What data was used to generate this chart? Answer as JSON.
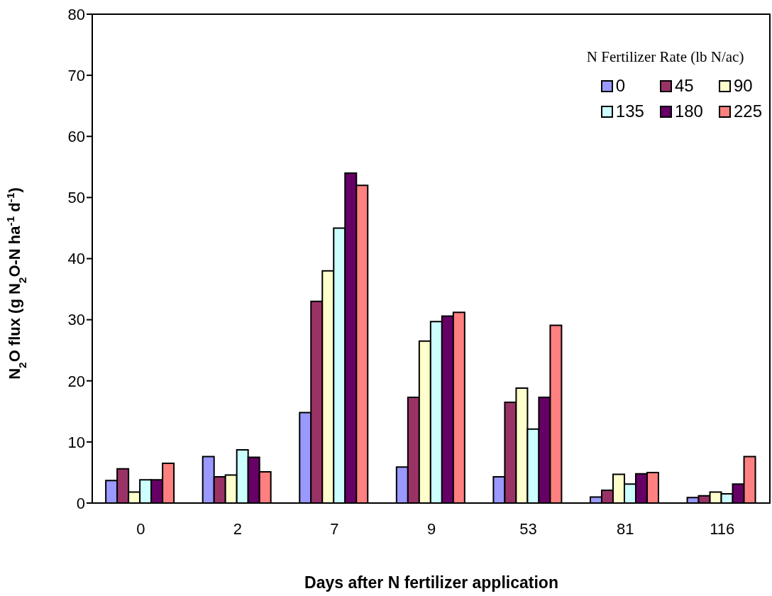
{
  "chart_data": {
    "type": "bar",
    "xlabel": "Days after N fertilizer application",
    "ylabel": "N$_{2}$O flux (g N$_{2}$O-N ha$^{-1}$ d$^{-1}$)",
    "legend_title": "N Fertilizer Rate (lb N/ac)",
    "categories": [
      "0",
      "2",
      "7",
      "9",
      "53",
      "81",
      "116"
    ],
    "series": [
      {
        "name": "0",
        "color": "#9999ff",
        "values": [
          3.7,
          7.6,
          14.8,
          5.9,
          4.3,
          1.0,
          0.9
        ]
      },
      {
        "name": "45",
        "color": "#993366",
        "values": [
          5.6,
          4.3,
          33,
          17.3,
          16.5,
          2.1,
          1.2
        ]
      },
      {
        "name": "90",
        "color": "#ffffcc",
        "values": [
          1.8,
          4.6,
          38,
          26.5,
          18.8,
          4.7,
          1.8
        ]
      },
      {
        "name": "135",
        "color": "#ccffff",
        "values": [
          3.8,
          8.7,
          45,
          29.7,
          12.1,
          3.1,
          1.5
        ]
      },
      {
        "name": "180",
        "color": "#660066",
        "values": [
          3.8,
          7.5,
          54,
          30.6,
          17.3,
          4.8,
          3.1
        ]
      },
      {
        "name": "225",
        "color": "#ff8080",
        "values": [
          6.5,
          5.1,
          52,
          31.2,
          29.1,
          5.0,
          7.6
        ]
      }
    ],
    "ylim": [
      0,
      80
    ],
    "yticks": [
      0,
      10,
      20,
      30,
      40,
      50,
      60,
      70,
      80
    ],
    "grid": false,
    "legend": "top right"
  }
}
